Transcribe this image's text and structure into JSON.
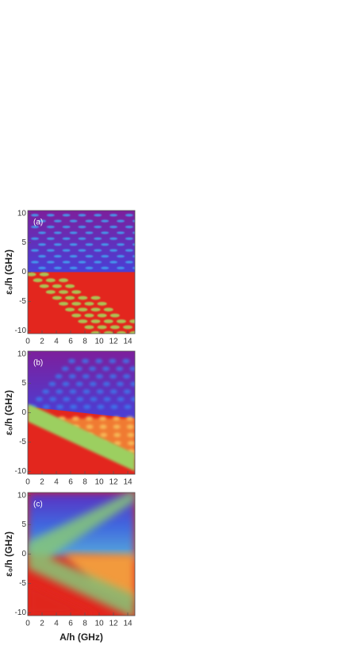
{
  "chart_data": [
    {
      "type": "heatmap",
      "panel_label": "(a)",
      "y_label": "ε₀/h (GHz)",
      "xlim": [
        0,
        15
      ],
      "xticks": [
        0,
        2,
        4,
        6,
        8,
        10,
        12,
        14
      ],
      "ylim": [
        -10.5,
        10.5
      ],
      "yticks": [
        -10,
        -5,
        0,
        5,
        10
      ]
    },
    {
      "type": "heatmap",
      "panel_label": "(b)",
      "y_label": "ε₀/h (GHz)",
      "xlim": [
        0,
        15
      ],
      "xticks": [
        0,
        2,
        4,
        6,
        8,
        10,
        12,
        14
      ],
      "ylim": [
        -10.5,
        10.5
      ],
      "yticks": [
        -10,
        -5,
        0,
        5,
        10
      ]
    },
    {
      "type": "heatmap",
      "panel_label": "(c)",
      "y_label": "ε₀/h (GHz)",
      "x_label": "A/h (GHz)",
      "xlim": [
        0,
        15
      ],
      "xticks": [
        0,
        2,
        4,
        6,
        8,
        10,
        12,
        14
      ],
      "ylim": [
        -10.5,
        10.5
      ],
      "yticks": [
        -10,
        -5,
        0,
        5,
        10
      ]
    }
  ]
}
